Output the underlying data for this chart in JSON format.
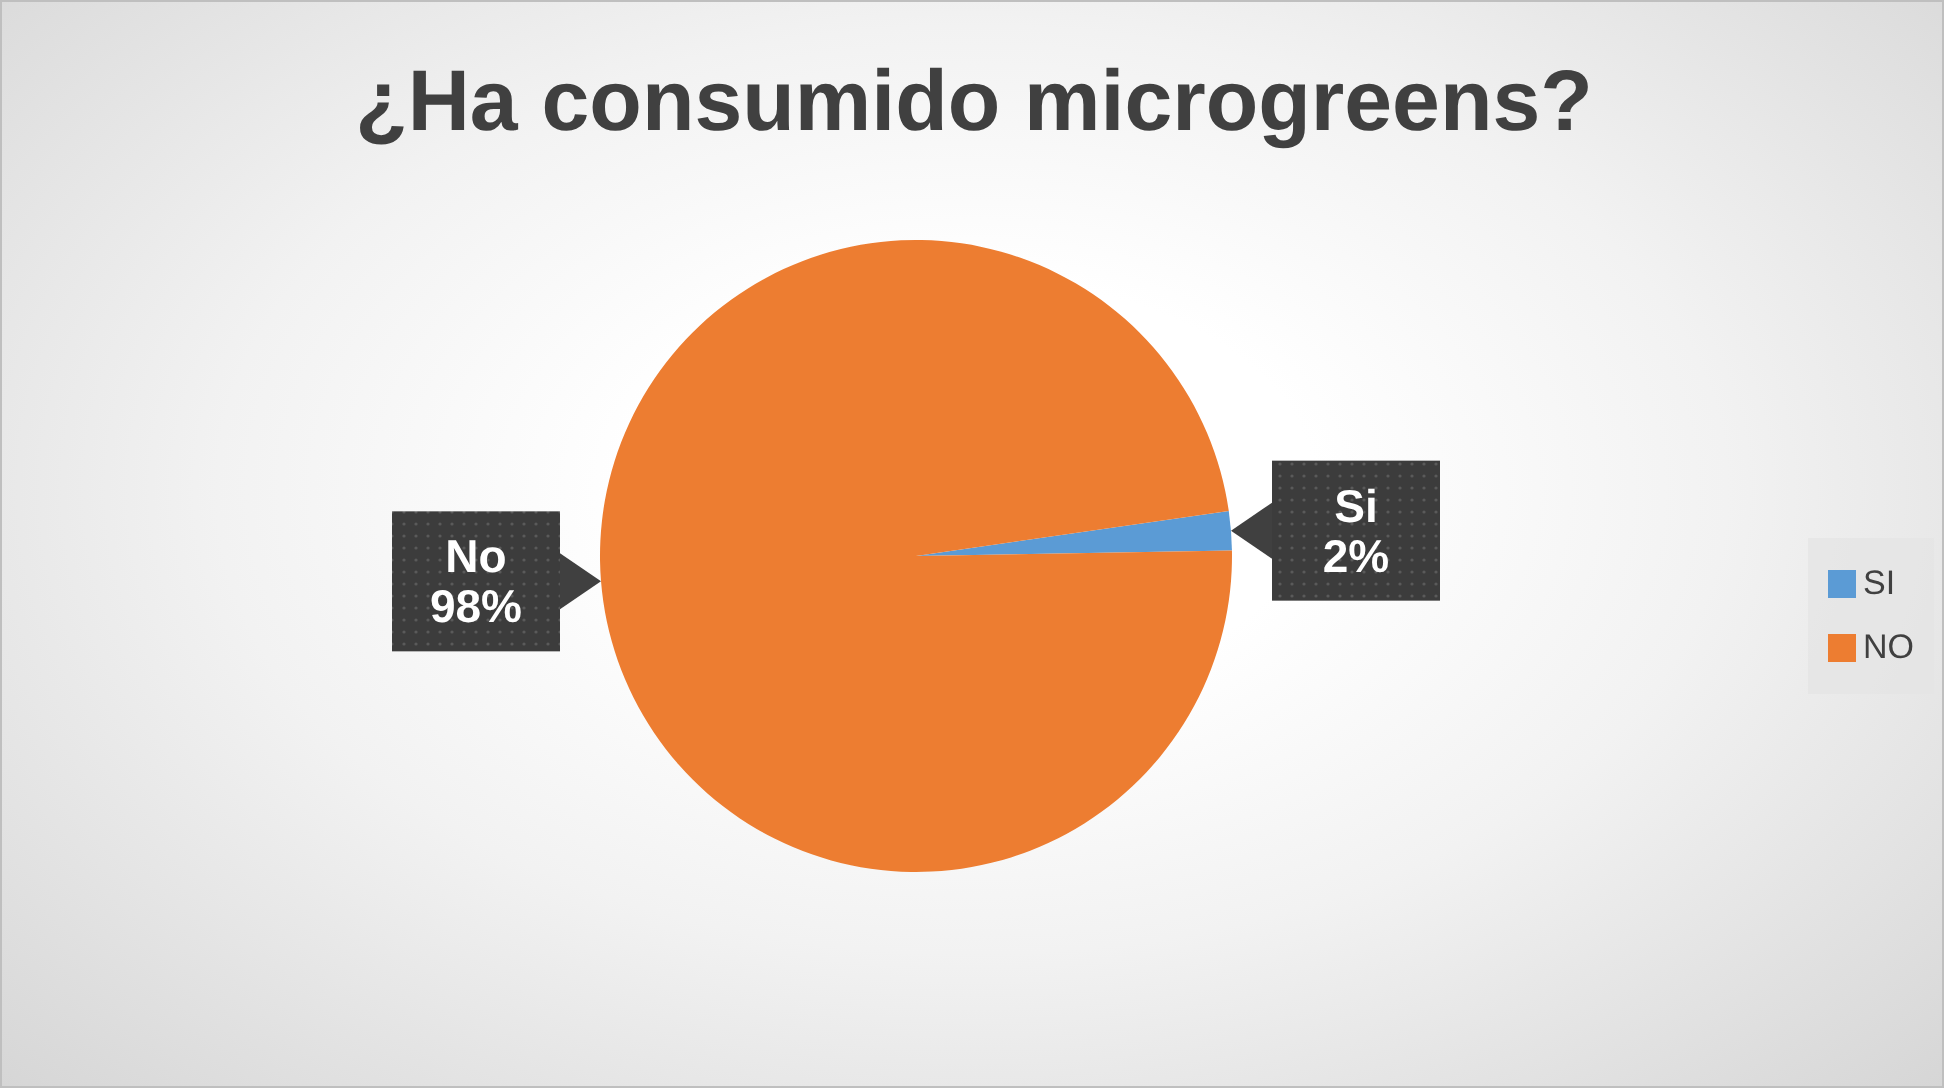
{
  "chart_data": {
    "type": "pie",
    "title": "¿Ha consumido microgreens?",
    "categories": [
      "SI",
      "NO"
    ],
    "values": [
      2,
      98
    ],
    "colors": [
      "#5b9bd5",
      "#ed7d31"
    ],
    "value_labels": [
      "Si\n2%",
      "No\n98%"
    ],
    "legend": "right"
  }
}
